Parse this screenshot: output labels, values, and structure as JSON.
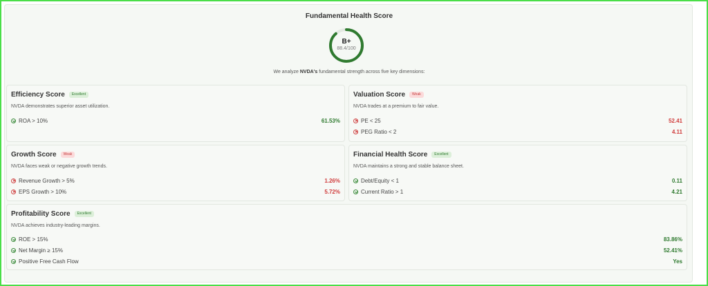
{
  "header": {
    "title": "Fundamental Health Score",
    "grade": "B+",
    "score_text": "88.4/100",
    "score_fraction": 0.884,
    "intro_before": "We analyze ",
    "intro_ticker": "NVDA's",
    "intro_after": " fundamental strength across five key dimensions:"
  },
  "colors": {
    "pass": "#2f7a2f",
    "fail": "#d03c3c",
    "accent": "#3a8a3a"
  },
  "cards": {
    "efficiency": {
      "title": "Efficiency Score",
      "badge": "Excellent",
      "desc": "NVDA demonstrates superior asset utilization.",
      "metrics": [
        {
          "label": "ROA > 10%",
          "value": "61.53%",
          "status": "pass"
        }
      ]
    },
    "valuation": {
      "title": "Valuation Score",
      "badge": "Weak",
      "desc": "NVDA trades at a premium to fair value.",
      "metrics": [
        {
          "label": "PE < 25",
          "value": "52.41",
          "status": "fail"
        },
        {
          "label": "PEG Ratio < 2",
          "value": "4.11",
          "status": "fail"
        }
      ]
    },
    "growth": {
      "title": "Growth Score",
      "badge": "Weak",
      "desc": "NVDA faces weak or negative growth trends.",
      "metrics": [
        {
          "label": "Revenue Growth > 5%",
          "value": "1.26%",
          "status": "fail"
        },
        {
          "label": "EPS Growth > 10%",
          "value": "5.72%",
          "status": "fail"
        }
      ]
    },
    "financial": {
      "title": "Financial Health Score",
      "badge": "Excellent",
      "desc": "NVDA maintains a strong and stable balance sheet.",
      "metrics": [
        {
          "label": "Debt/Equity < 1",
          "value": "0.11",
          "status": "pass"
        },
        {
          "label": "Current Ratio > 1",
          "value": "4.21",
          "status": "pass"
        }
      ]
    },
    "profitability": {
      "title": "Profitability Score",
      "badge": "Excellent",
      "desc": "NVDA achieves industry-leading margins.",
      "metrics": [
        {
          "label": "ROE > 15%",
          "value": "83.86%",
          "status": "pass"
        },
        {
          "label": "Net Margin ≥ 15%",
          "value": "52.41%",
          "status": "pass"
        },
        {
          "label": "Positive Free Cash Flow",
          "value": "Yes",
          "status": "pass"
        }
      ]
    }
  }
}
